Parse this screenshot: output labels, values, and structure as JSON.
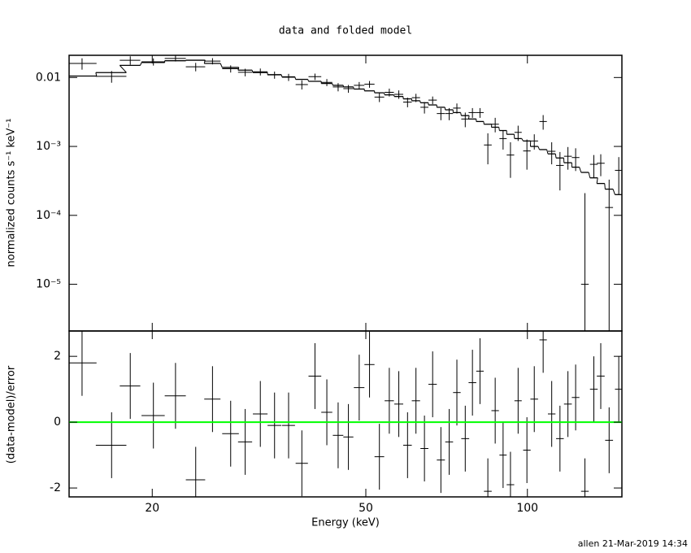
{
  "chart_data": {
    "type": "spectrum",
    "title": "data and folded model",
    "xlabel": "Energy (keV)",
    "ylabel": "normalized counts s⁻¹ keV⁻¹",
    "residual_ylabel": "(data-model)/error",
    "footer": "allen 21-Mar-2019 14:34",
    "x_log": true,
    "y_log": true,
    "color": "#000000",
    "zero_line_color": "#00ff00",
    "xlim": [
      14,
      150
    ],
    "xticks": [
      20,
      50,
      100
    ],
    "ylim": [
      2.1e-06,
      0.021
    ],
    "yticks": [
      {
        "value": 1e-05,
        "label": "10⁻⁵"
      },
      {
        "value": 0.0001,
        "label": "10⁻⁴"
      },
      {
        "value": 0.001,
        "label": "10⁻³"
      },
      0.01
    ],
    "residual_ylim": [
      -2.27,
      2.77
    ],
    "residual_yticks": [
      -2,
      0,
      2
    ],
    "x": [
      14.8,
      16.8,
      18.2,
      20.1,
      22.1,
      24.1,
      25.9,
      28.0,
      29.8,
      31.8,
      33.8,
      35.9,
      38.0,
      40.2,
      42.3,
      44.4,
      46.4,
      48.6,
      50.8,
      53.0,
      55.3,
      57.6,
      59.8,
      62.0,
      64.3,
      66.6,
      69.0,
      71.5,
      73.9,
      76.6,
      79.0,
      81.6,
      84.4,
      87.1,
      90.1,
      93.0,
      96.1,
      99.8,
      103,
      107,
      111,
      115,
      119,
      123,
      128,
      133,
      137,
      142,
      148
    ],
    "xerr": [
      0.95,
      1.1,
      0.8,
      1.0,
      1.0,
      1.0,
      0.9,
      1.0,
      0.9,
      1.0,
      1.0,
      1.0,
      1.0,
      1.1,
      1.0,
      1.0,
      1.0,
      1.1,
      1.1,
      1.1,
      1.1,
      1.1,
      1.1,
      1.1,
      1.1,
      1.2,
      1.2,
      1.2,
      1.2,
      1.3,
      1.3,
      1.3,
      1.4,
      1.4,
      1.4,
      1.5,
      1.5,
      1.6,
      1.7,
      1.7,
      1.8,
      1.9,
      2.0,
      2.0,
      2.1,
      2.2,
      2.3,
      2.4,
      2.4
    ],
    "values": [
      0.016,
      0.0104,
      0.0178,
      0.0169,
      0.0189,
      0.0143,
      0.0173,
      0.0134,
      0.0119,
      0.0121,
      0.0109,
      0.0101,
      0.0079,
      0.0103,
      0.0085,
      0.0073,
      0.0069,
      0.0077,
      0.008,
      0.0052,
      0.0061,
      0.0057,
      0.0044,
      0.0051,
      0.0037,
      0.0047,
      0.003,
      0.003,
      0.0036,
      0.0025,
      0.0031,
      0.0031,
      0.00105,
      0.0021,
      0.0013,
      0.00075,
      0.0016,
      0.00086,
      0.0012,
      0.0023,
      0.00085,
      0.00053,
      0.00072,
      0.00069,
      1e-05,
      0.00055,
      0.00057,
      0.00013,
      0.00045
    ],
    "errors": [
      0.003,
      0.002,
      0.0025,
      0.002,
      0.0018,
      0.002,
      0.0018,
      0.0016,
      0.0015,
      0.0014,
      0.0013,
      0.0012,
      0.0012,
      0.0011,
      0.001,
      0.001,
      0.0009,
      0.0009,
      0.0009,
      0.0008,
      0.0008,
      0.0008,
      0.0007,
      0.0007,
      0.0007,
      0.0006,
      0.0006,
      0.0006,
      0.0006,
      0.0006,
      0.0005,
      0.0005,
      0.0005,
      0.0005,
      0.0004,
      0.0004,
      0.0004,
      0.0004,
      0.0003,
      0.00055,
      0.0003,
      0.0003,
      0.00026,
      0.00025,
      0.0002,
      0.0002,
      0.0002,
      0.0002,
      0.00025
    ],
    "model": [
      0.0105,
      0.0118,
      0.015,
      0.0165,
      0.0175,
      0.0178,
      0.016,
      0.014,
      0.0128,
      0.0118,
      0.011,
      0.0102,
      0.0094,
      0.0088,
      0.0082,
      0.0077,
      0.0073,
      0.0068,
      0.0064,
      0.006,
      0.0056,
      0.0053,
      0.0049,
      0.0046,
      0.0043,
      0.004,
      0.0037,
      0.0034,
      0.0031,
      0.0028,
      0.0025,
      0.0023,
      0.0021,
      0.0019,
      0.0017,
      0.0015,
      0.0013,
      0.0012,
      0.001,
      0.0009,
      0.00078,
      0.00068,
      0.00058,
      0.0005,
      0.00042,
      0.00035,
      0.00029,
      0.00024,
      0.0002
    ],
    "residuals": [
      1.8,
      -0.7,
      1.1,
      0.2,
      0.8,
      -1.75,
      0.7,
      -0.35,
      -0.6,
      0.25,
      -0.1,
      -0.1,
      -1.25,
      1.4,
      0.3,
      -0.4,
      -0.45,
      1.05,
      1.75,
      -1.05,
      0.65,
      0.55,
      -0.7,
      0.65,
      -0.8,
      1.15,
      -1.15,
      -0.6,
      0.9,
      -0.5,
      1.2,
      1.55,
      -2.1,
      0.35,
      -1.0,
      -1.9,
      0.65,
      -0.85,
      0.7,
      2.5,
      0.25,
      -0.5,
      0.55,
      0.75,
      -2.1,
      1.0,
      1.4,
      -0.55,
      1.0
    ],
    "residual_error": 1
  }
}
